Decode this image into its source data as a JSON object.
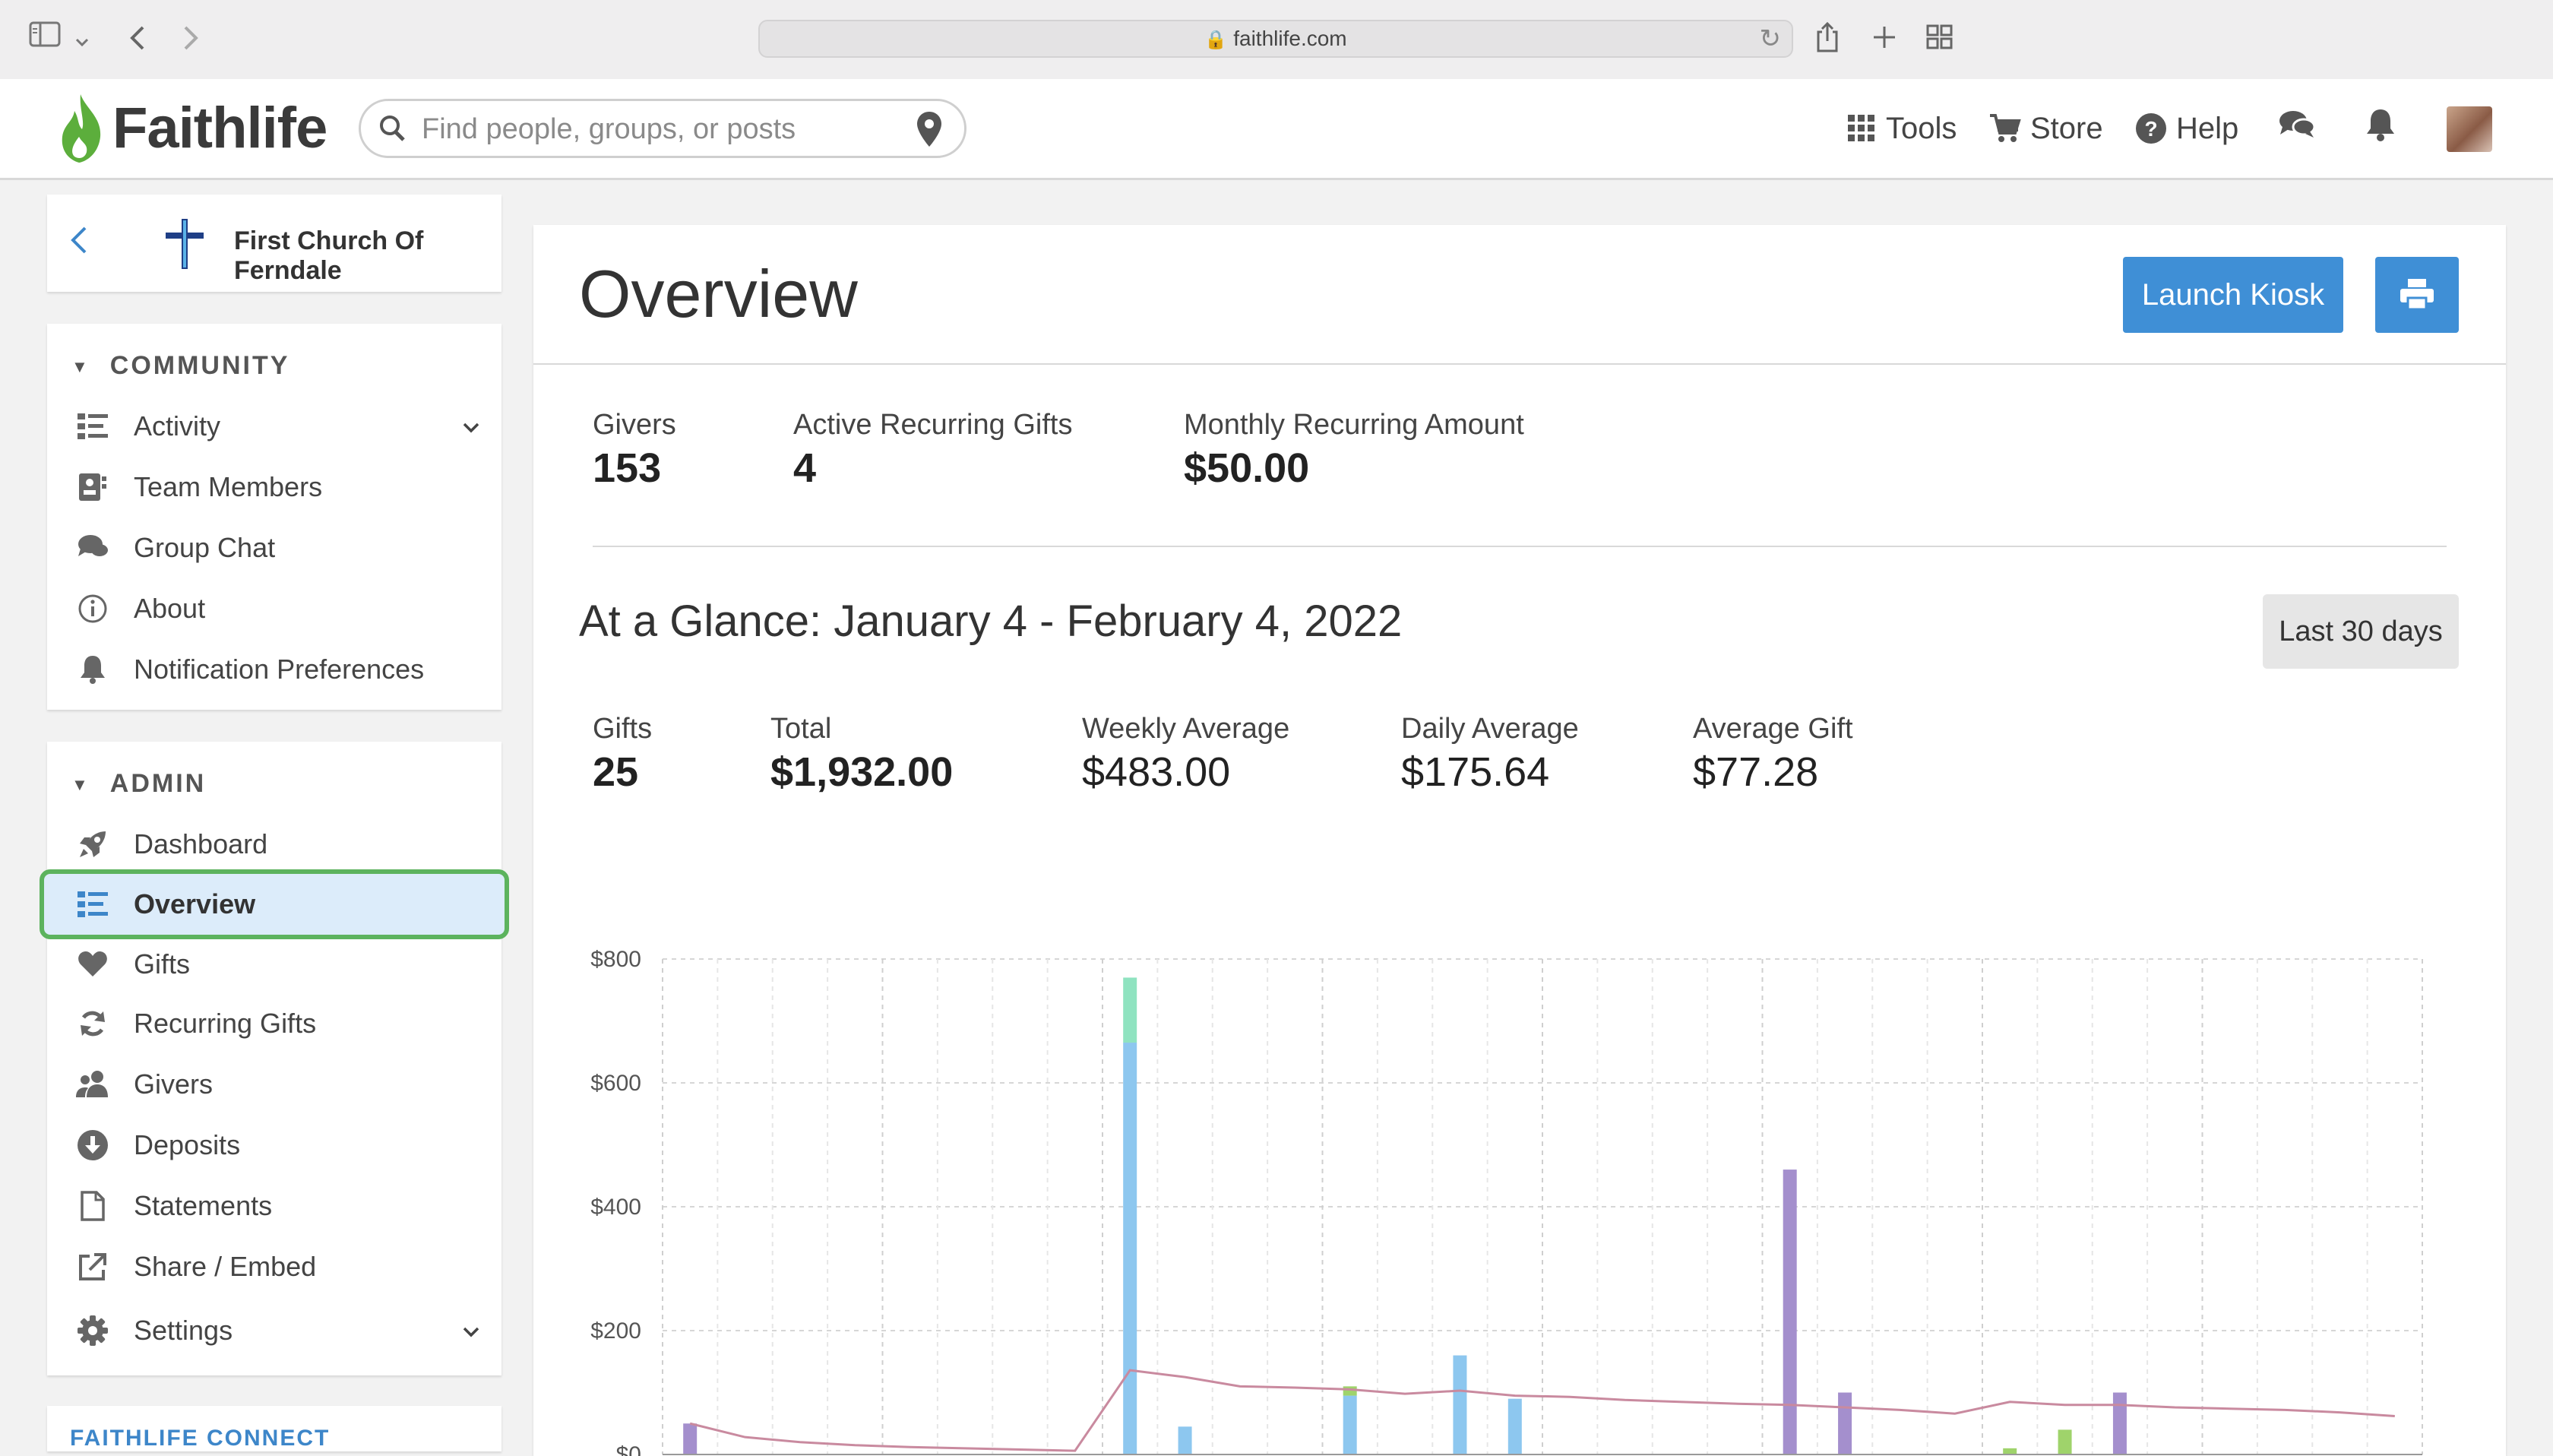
{
  "browser": {
    "url": "faithlife.com"
  },
  "header": {
    "brand": "Faithlife",
    "search_placeholder": "Find people, groups, or posts",
    "tools_label": "Tools",
    "store_label": "Store",
    "help_label": "Help"
  },
  "sidebar": {
    "church_name": "First Church Of Ferndale",
    "community": {
      "heading": "COMMUNITY",
      "items": [
        {
          "label": "Activity",
          "icon": "list-icon"
        },
        {
          "label": "Team Members",
          "icon": "id-card-icon"
        },
        {
          "label": "Group Chat",
          "icon": "chat-icon"
        },
        {
          "label": "About",
          "icon": "info-icon"
        },
        {
          "label": "Notification Preferences",
          "icon": "bell-icon"
        }
      ]
    },
    "admin": {
      "heading": "ADMIN",
      "items": [
        {
          "label": "Dashboard",
          "icon": "rocket-icon"
        },
        {
          "label": "Overview",
          "icon": "list-icon",
          "active": true
        },
        {
          "label": "Gifts",
          "icon": "heart-icon"
        },
        {
          "label": "Recurring Gifts",
          "icon": "refresh-icon"
        },
        {
          "label": "Givers",
          "icon": "users-icon"
        },
        {
          "label": "Deposits",
          "icon": "download-circle-icon"
        },
        {
          "label": "Statements",
          "icon": "document-icon"
        },
        {
          "label": "Share / Embed",
          "icon": "external-link-icon"
        },
        {
          "label": "Settings",
          "icon": "gear-icon"
        }
      ]
    },
    "connect_heading": "FAITHLIFE CONNECT"
  },
  "main": {
    "title": "Overview",
    "launch_kiosk_label": "Launch Kiosk",
    "summary": [
      {
        "label": "Givers",
        "value": "153"
      },
      {
        "label": "Active Recurring Gifts",
        "value": "4"
      },
      {
        "label": "Monthly Recurring Amount",
        "value": "$50.00"
      }
    ],
    "glance_title": "At a Glance: January 4 - February 4, 2022",
    "range_label": "Last 30 days",
    "glance_stats": [
      {
        "label": "Gifts",
        "value": "25"
      },
      {
        "label": "Total",
        "value": "$1,932.00"
      },
      {
        "label": "Weekly Average",
        "value": "$483.00"
      },
      {
        "label": "Daily Average",
        "value": "$175.64"
      },
      {
        "label": "Average Gift",
        "value": "$77.28"
      }
    ]
  },
  "colors": {
    "accent": "#3f8fd6",
    "active_bg": "#dcecfa",
    "highlight_outline": "#5cb35e",
    "brand_green": "#5cae3c",
    "bar_blue": "#8dc7ef",
    "bar_teal": "#8fe3c0",
    "bar_purple": "#a48fcd",
    "bar_green": "#9fd36b",
    "line": "#c98a9f"
  },
  "chart_data": {
    "type": "bar",
    "y_tick_labels": [
      "$800",
      "$600",
      "$400",
      "$200",
      "$0"
    ],
    "ylim": [
      0,
      800
    ],
    "grid": true,
    "days": [
      1,
      9,
      10,
      13,
      15,
      16,
      21,
      22,
      25,
      26,
      27,
      28
    ],
    "series": [
      {
        "color": "#8dc7ef",
        "values": [
          0,
          665,
          45,
          95,
          160,
          90,
          0,
          0,
          0,
          0,
          0,
          0
        ]
      },
      {
        "color": "#8fe3c0",
        "values": [
          0,
          105,
          0,
          0,
          0,
          0,
          0,
          0,
          0,
          0,
          0,
          0
        ]
      },
      {
        "color": "#a48fcd",
        "values": [
          50,
          0,
          0,
          0,
          0,
          0,
          460,
          100,
          0,
          0,
          100,
          0
        ]
      },
      {
        "color": "#9fd36b",
        "values": [
          0,
          0,
          0,
          15,
          0,
          0,
          0,
          0,
          10,
          40,
          0,
          0
        ]
      }
    ],
    "line": {
      "color": "#c98a9f",
      "x": [
        1,
        2,
        3,
        4,
        5,
        6,
        7,
        8,
        9,
        10,
        11,
        12,
        13,
        14,
        15,
        16,
        17,
        18,
        19,
        20,
        21,
        22,
        23,
        24,
        25,
        26,
        27,
        28,
        29,
        30,
        31,
        32
      ],
      "values": [
        50,
        28,
        20,
        15,
        12,
        10,
        8,
        6,
        136,
        125,
        110,
        108,
        105,
        98,
        103,
        95,
        93,
        88,
        85,
        82,
        80,
        76,
        72,
        66,
        85,
        80,
        80,
        76,
        74,
        72,
        68,
        62
      ]
    }
  }
}
